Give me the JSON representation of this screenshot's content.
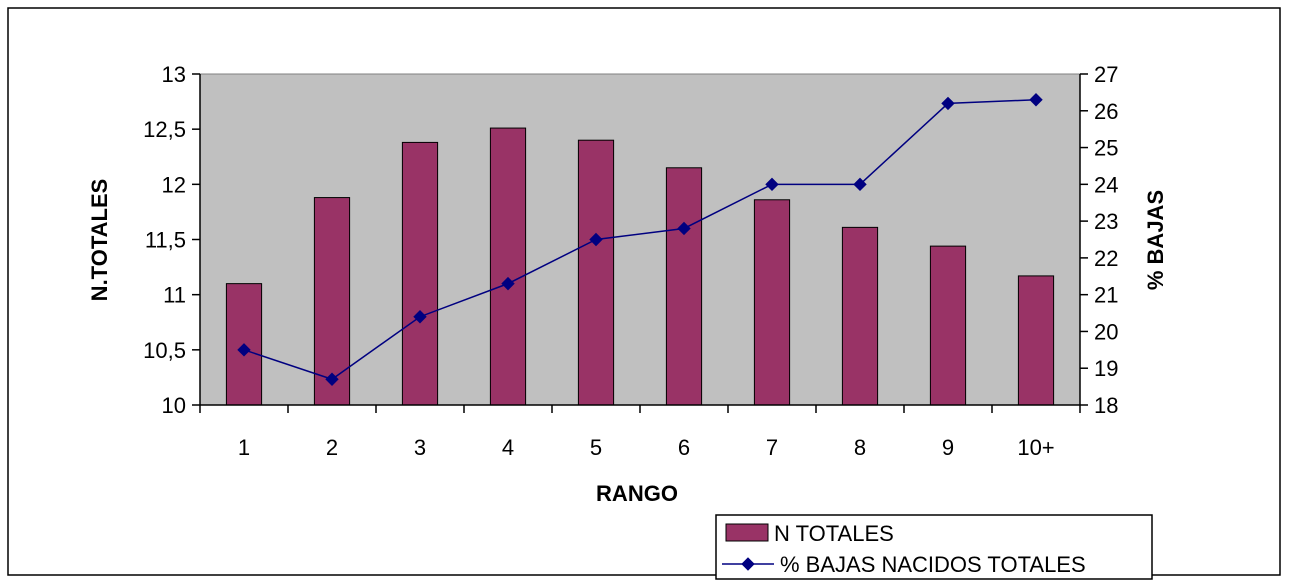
{
  "chart_data": {
    "type": "bar",
    "categories": [
      "1",
      "2",
      "3",
      "4",
      "5",
      "6",
      "7",
      "8",
      "9",
      "10+"
    ],
    "xlabel": "RANGO",
    "ylabel": "N.TOTALES",
    "y2label": "% BAJAS",
    "ylim": [
      10,
      13
    ],
    "y2lim": [
      18,
      27
    ],
    "yticks": [
      "10",
      "10,5",
      "11",
      "11,5",
      "12",
      "12,5",
      "13"
    ],
    "y2ticks": [
      "18",
      "19",
      "20",
      "21",
      "22",
      "23",
      "24",
      "25",
      "26",
      "27"
    ],
    "grid": false,
    "legend_position": "bottom-right",
    "plot_background": "#c0c0c0",
    "series": [
      {
        "name": "N TOTALES",
        "type": "bar",
        "axis": "left",
        "color": "#993366",
        "values": [
          11.1,
          11.88,
          12.38,
          12.51,
          12.4,
          12.15,
          11.86,
          11.61,
          11.44,
          11.17
        ]
      },
      {
        "name": "% BAJAS NACIDOS TOTALES",
        "type": "line",
        "axis": "right",
        "color": "#000080",
        "marker": "diamond",
        "values": [
          19.5,
          18.7,
          20.4,
          21.3,
          22.5,
          22.8,
          24.0,
          24.0,
          26.2,
          26.3
        ]
      }
    ]
  }
}
